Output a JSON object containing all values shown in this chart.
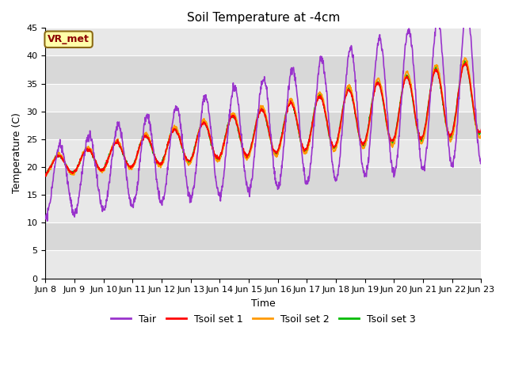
{
  "title": "Soil Temperature at -4cm",
  "xlabel": "Time",
  "ylabel": "Temperature (C)",
  "ylim": [
    0,
    45
  ],
  "yticks": [
    0,
    5,
    10,
    15,
    20,
    25,
    30,
    35,
    40,
    45
  ],
  "xtick_labels": [
    "Jun 8",
    "Jun 9",
    "Jun 10",
    "Jun 11",
    "Jun 12",
    "Jun 13",
    "Jun 14",
    "Jun 15",
    "Jun 16",
    "Jun 17",
    "Jun 18",
    "Jun 19",
    "Jun 20",
    "Jun 21",
    "Jun 22",
    "Jun 23"
  ],
  "color_tair": "#9933cc",
  "color_tsoil1": "#ff0000",
  "color_tsoil2": "#ff9900",
  "color_tsoil3": "#00bb00",
  "legend_labels": [
    "Tair",
    "Tsoil set 1",
    "Tsoil set 2",
    "Tsoil set 3"
  ],
  "bg_color_light": "#e8e8e8",
  "bg_color_dark": "#d4d4d4",
  "annotation_text": "VR_met",
  "annotation_bg": "#ffffaa",
  "annotation_border": "#8b4513"
}
